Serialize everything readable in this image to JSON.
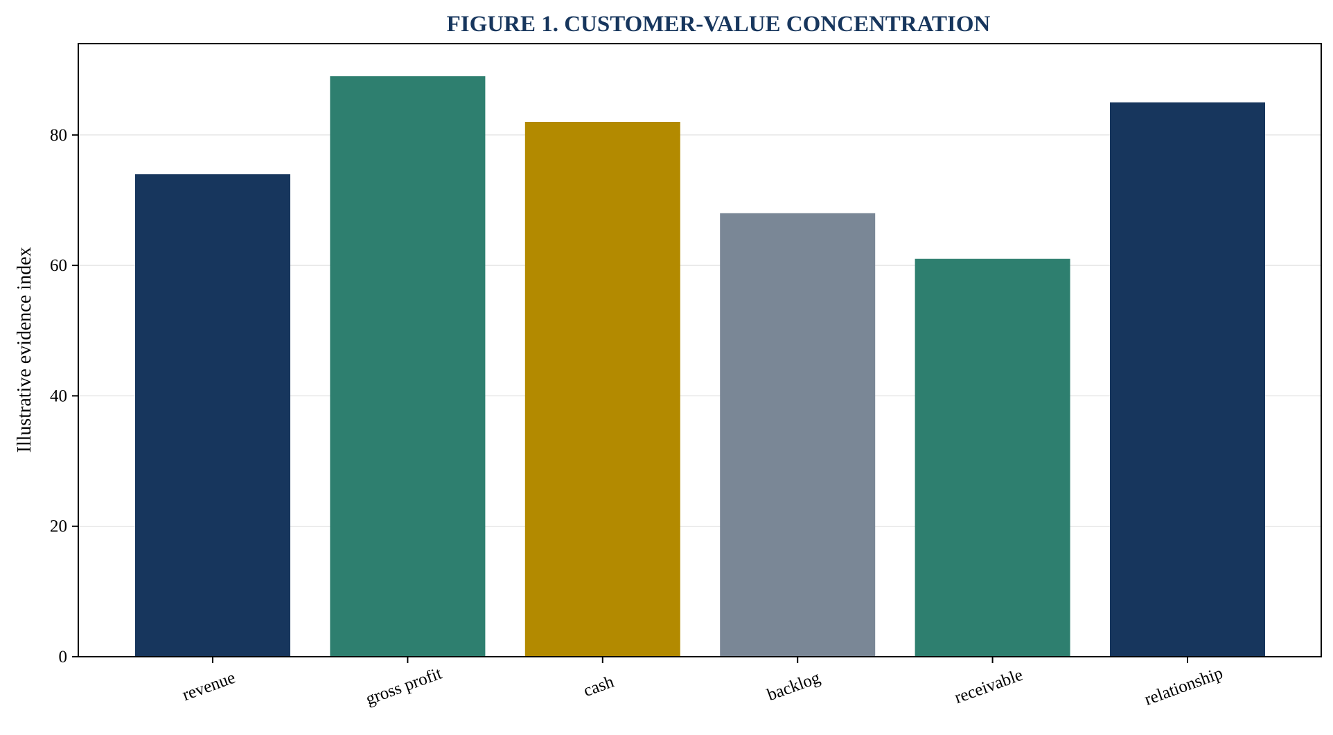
{
  "chart_data": {
    "type": "bar",
    "title": "FIGURE 1. CUSTOMER-VALUE CONCENTRATION",
    "xlabel": "",
    "ylabel": "Illustrative evidence index",
    "categories": [
      "revenue",
      "gross profit",
      "cash",
      "backlog",
      "receivable",
      "relationship"
    ],
    "values": [
      74,
      89,
      82,
      68,
      61,
      85
    ],
    "bar_colors": [
      "#17365d",
      "#2e7f6f",
      "#b38a00",
      "#7a8796",
      "#2e7f6f",
      "#17365d"
    ],
    "ylim": [
      0,
      94
    ],
    "yticks": [
      0,
      20,
      40,
      60,
      80
    ],
    "grid": true,
    "legend": "none",
    "title_color": "#17365d"
  }
}
